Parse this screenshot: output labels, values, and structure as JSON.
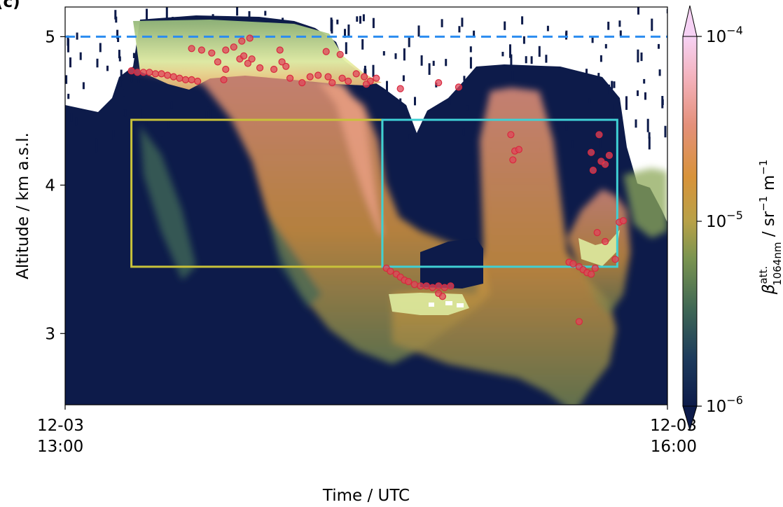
{
  "panel_label": "(c)",
  "chart_data": {
    "type": "heatmap",
    "xlabel": "Time / UTC",
    "ylabel": "Altitude / km a.s.l.",
    "xlim": [
      "12-03 13:00",
      "12-03 16:00"
    ],
    "ylim": [
      2.52,
      5.2
    ],
    "x_ticks": [
      {
        "value": 13.0,
        "line1": "12-03",
        "line2": "13:00"
      },
      {
        "value": 16.0,
        "line1": "12-03",
        "line2": "16:00"
      }
    ],
    "y_ticks": [
      {
        "value": 3,
        "label": "3"
      },
      {
        "value": 4,
        "label": "4"
      },
      {
        "value": 5,
        "label": "5"
      }
    ],
    "colorbar": {
      "label_symbol": "β",
      "label_sup": "att.",
      "label_sub": "1064nm",
      "label_units": " / sr",
      "label_units_sup": "−1",
      "label_units2": " m",
      "label_units2_sup": "−1",
      "scale": "log",
      "range": [
        1e-06,
        0.0001
      ],
      "extend": "both",
      "ticks": [
        {
          "base": "10",
          "exp": "−4",
          "value": 0.0001
        },
        {
          "base": "10",
          "exp": "−5",
          "value": 1e-05
        },
        {
          "base": "10",
          "exp": "−6",
          "value": 1e-06
        }
      ],
      "colors": [
        "#0d1b4a",
        "#1d3b5c",
        "#3e6655",
        "#7a9450",
        "#b8a148",
        "#d8933a",
        "#e4907a",
        "#f3b0b8",
        "#f6d2f4"
      ]
    },
    "reference_line": {
      "y": 5.0,
      "color": "#2b8cf0",
      "style": "dashed"
    },
    "regions": [
      {
        "x": [
          13.33,
          14.58
        ],
        "y": [
          3.45,
          4.44
        ],
        "color": "#c8c23a"
      },
      {
        "x": [
          14.58,
          15.75
        ],
        "y": [
          3.45,
          4.44
        ],
        "color": "#3fd0d4"
      }
    ],
    "cloud_top_points": [
      {
        "x": 13.33,
        "y": 4.77
      },
      {
        "x": 13.36,
        "y": 4.76
      },
      {
        "x": 13.39,
        "y": 4.76
      },
      {
        "x": 13.42,
        "y": 4.76
      },
      {
        "x": 13.45,
        "y": 4.75
      },
      {
        "x": 13.48,
        "y": 4.75
      },
      {
        "x": 13.51,
        "y": 4.74
      },
      {
        "x": 13.54,
        "y": 4.73
      },
      {
        "x": 13.57,
        "y": 4.72
      },
      {
        "x": 13.6,
        "y": 4.71
      },
      {
        "x": 13.63,
        "y": 4.71
      },
      {
        "x": 13.66,
        "y": 4.7
      },
      {
        "x": 13.63,
        "y": 4.92
      },
      {
        "x": 13.68,
        "y": 4.91
      },
      {
        "x": 13.73,
        "y": 4.89
      },
      {
        "x": 13.76,
        "y": 4.83
      },
      {
        "x": 13.8,
        "y": 4.91
      },
      {
        "x": 13.84,
        "y": 4.93
      },
      {
        "x": 13.87,
        "y": 4.85
      },
      {
        "x": 13.79,
        "y": 4.71
      },
      {
        "x": 13.8,
        "y": 4.78
      },
      {
        "x": 13.88,
        "y": 4.97
      },
      {
        "x": 13.92,
        "y": 4.99
      },
      {
        "x": 13.89,
        "y": 4.87
      },
      {
        "x": 13.91,
        "y": 4.82
      },
      {
        "x": 13.93,
        "y": 4.85
      },
      {
        "x": 13.97,
        "y": 4.79
      },
      {
        "x": 14.04,
        "y": 4.78
      },
      {
        "x": 14.07,
        "y": 4.91
      },
      {
        "x": 14.12,
        "y": 4.72
      },
      {
        "x": 14.08,
        "y": 4.83
      },
      {
        "x": 14.1,
        "y": 4.8
      },
      {
        "x": 14.18,
        "y": 4.69
      },
      {
        "x": 14.22,
        "y": 4.73
      },
      {
        "x": 14.26,
        "y": 4.74
      },
      {
        "x": 14.3,
        "y": 4.9
      },
      {
        "x": 14.31,
        "y": 4.73
      },
      {
        "x": 14.33,
        "y": 4.69
      },
      {
        "x": 14.37,
        "y": 4.88
      },
      {
        "x": 14.38,
        "y": 4.72
      },
      {
        "x": 14.41,
        "y": 4.7
      },
      {
        "x": 14.45,
        "y": 4.75
      },
      {
        "x": 14.49,
        "y": 4.73
      },
      {
        "x": 14.52,
        "y": 4.7
      },
      {
        "x": 14.55,
        "y": 4.72
      },
      {
        "x": 14.5,
        "y": 4.68
      },
      {
        "x": 14.67,
        "y": 4.65
      },
      {
        "x": 14.86,
        "y": 4.69
      },
      {
        "x": 14.96,
        "y": 4.66
      },
      {
        "x": 14.6,
        "y": 3.44
      },
      {
        "x": 14.62,
        "y": 3.42
      },
      {
        "x": 14.65,
        "y": 3.4
      },
      {
        "x": 14.67,
        "y": 3.38
      },
      {
        "x": 14.69,
        "y": 3.36
      },
      {
        "x": 14.71,
        "y": 3.35
      },
      {
        "x": 14.74,
        "y": 3.33
      },
      {
        "x": 14.77,
        "y": 3.32
      },
      {
        "x": 14.8,
        "y": 3.32
      },
      {
        "x": 14.83,
        "y": 3.31
      },
      {
        "x": 14.86,
        "y": 3.32
      },
      {
        "x": 14.89,
        "y": 3.31
      },
      {
        "x": 14.92,
        "y": 3.32
      },
      {
        "x": 14.86,
        "y": 3.27
      },
      {
        "x": 14.88,
        "y": 3.25
      },
      {
        "x": 15.22,
        "y": 4.34
      },
      {
        "x": 15.24,
        "y": 4.23
      },
      {
        "x": 15.26,
        "y": 4.24
      },
      {
        "x": 15.23,
        "y": 4.17
      },
      {
        "x": 15.51,
        "y": 3.48
      },
      {
        "x": 15.53,
        "y": 3.47
      },
      {
        "x": 15.56,
        "y": 3.45
      },
      {
        "x": 15.58,
        "y": 3.43
      },
      {
        "x": 15.6,
        "y": 3.41
      },
      {
        "x": 15.62,
        "y": 3.4
      },
      {
        "x": 15.64,
        "y": 3.44
      },
      {
        "x": 15.56,
        "y": 3.08
      },
      {
        "x": 15.62,
        "y": 4.22
      },
      {
        "x": 15.63,
        "y": 4.1
      },
      {
        "x": 15.67,
        "y": 4.16
      },
      {
        "x": 15.69,
        "y": 4.14
      },
      {
        "x": 15.71,
        "y": 4.2
      },
      {
        "x": 15.66,
        "y": 4.34
      },
      {
        "x": 15.65,
        "y": 3.68
      },
      {
        "x": 15.69,
        "y": 3.62
      },
      {
        "x": 15.74,
        "y": 3.5
      },
      {
        "x": 15.76,
        "y": 3.75
      },
      {
        "x": 15.78,
        "y": 3.76
      }
    ]
  }
}
